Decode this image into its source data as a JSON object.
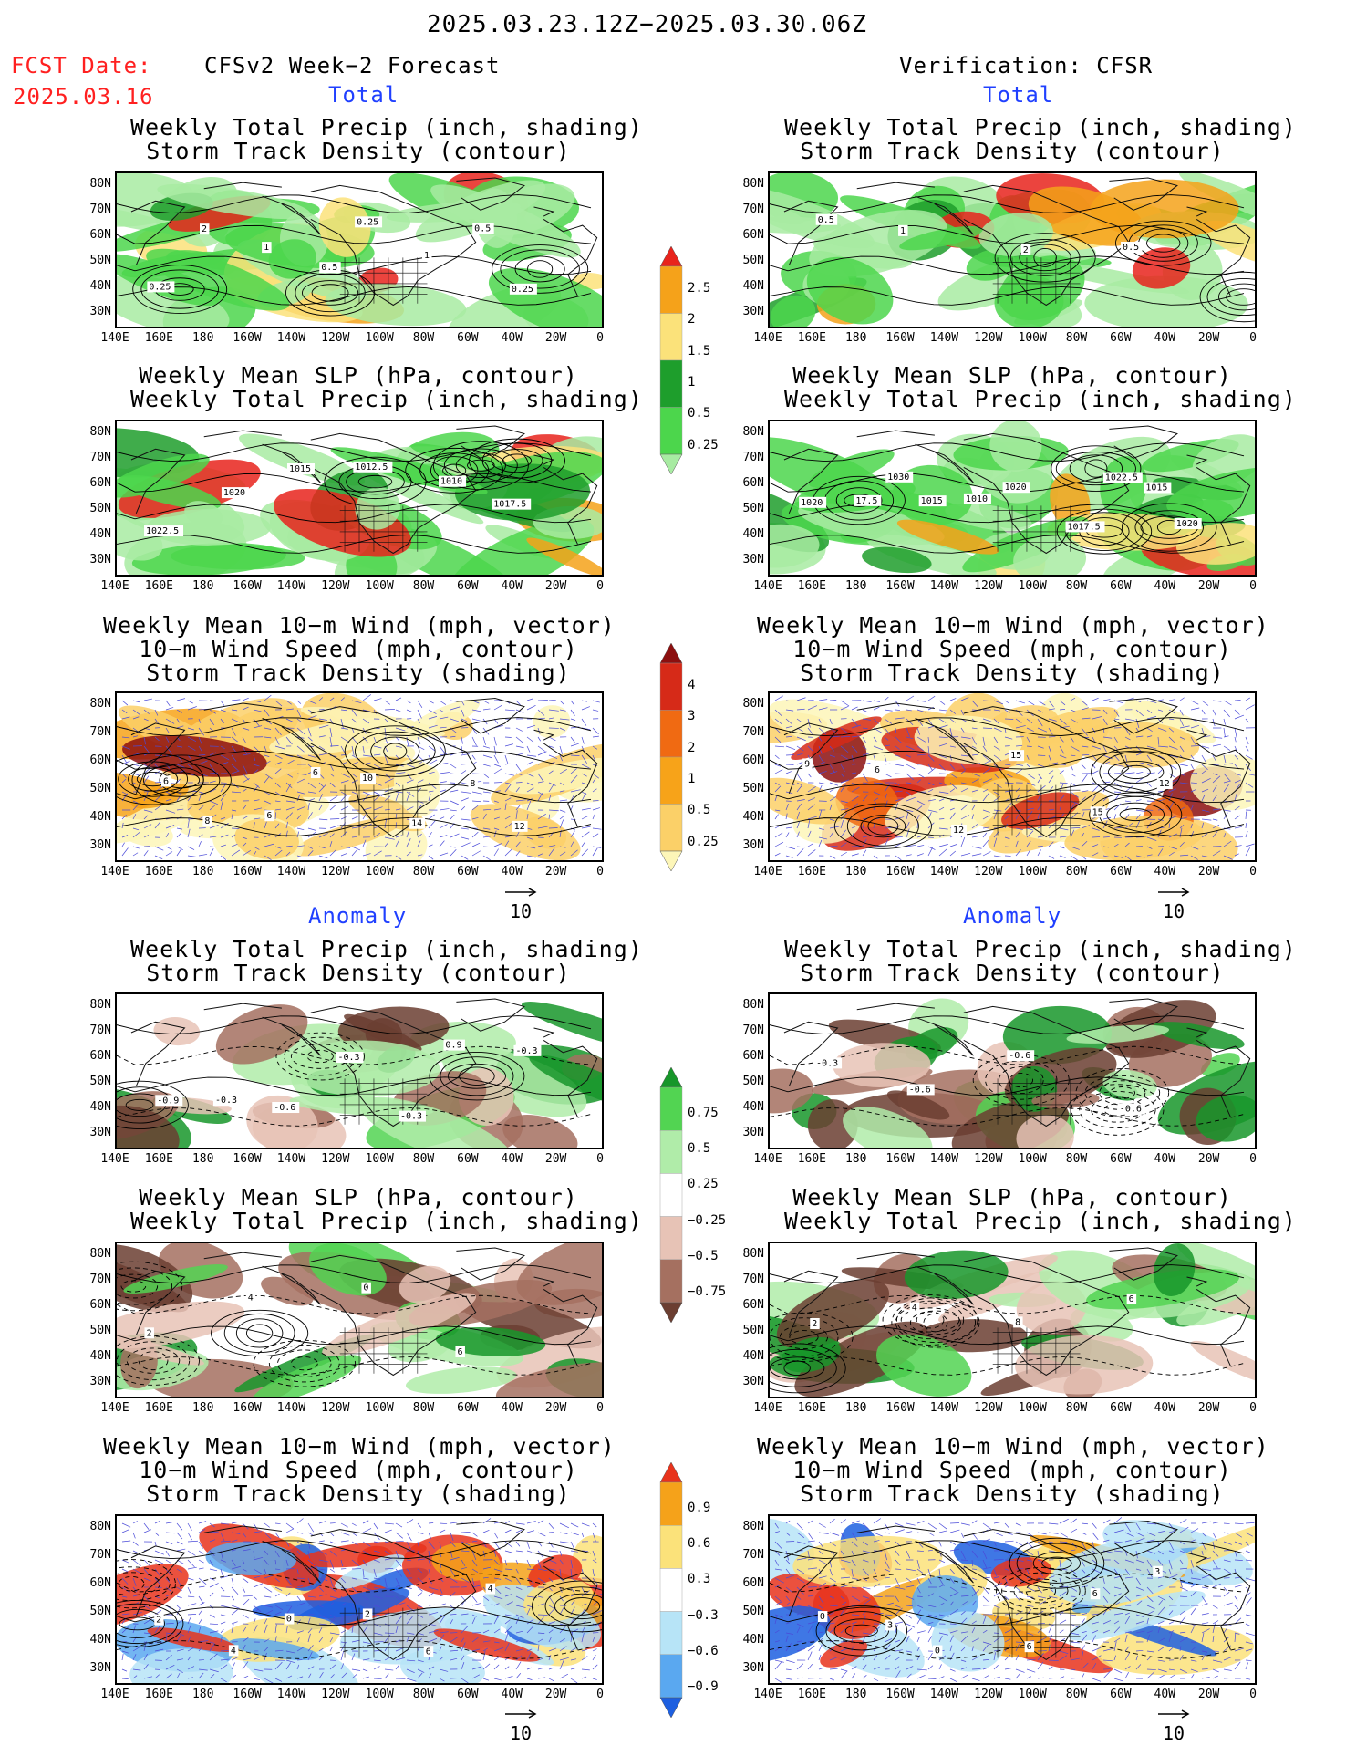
{
  "header": {
    "period": "2025.03.23.12Z−2025.03.30.06Z",
    "fcst_label": "FCST Date:",
    "fcst_date": "2025.03.16",
    "left_title": "CFSv2 Week−2 Forecast",
    "right_title": "Verification: CFSR"
  },
  "sections": {
    "total": "Total",
    "anomaly": "Anomaly"
  },
  "panel_titles": {
    "precip": [
      "Weekly Total Precip (inch, shading)",
      "Storm Track Density (contour)"
    ],
    "slp": [
      "Weekly Mean SLP (hPa, contour)",
      "Weekly Total Precip (inch, shading)"
    ],
    "wind": [
      "Weekly Mean 10−m Wind (mph, vector)",
      "10−m Wind Speed (mph, contour)",
      "Storm Track Density (shading)"
    ]
  },
  "axes": {
    "lat": [
      "80N",
      "70N",
      "60N",
      "50N",
      "40N",
      "30N"
    ],
    "lon": [
      "140E",
      "160E",
      "180",
      "160W",
      "140W",
      "120W",
      "100W",
      "80W",
      "60W",
      "40W",
      "20W",
      "0"
    ]
  },
  "vector_ref": "10",
  "colorbars": {
    "precip_total": {
      "labels": [
        "2.5",
        "2",
        "1.5",
        "1",
        "0.5",
        "0.25"
      ],
      "colors": [
        "#e8231c",
        "#f5a21a",
        "#fbe27a",
        "#1e9e2c",
        "#4cd64c",
        "#a8eba2"
      ]
    },
    "storm_total": {
      "labels": [
        "4",
        "3",
        "2",
        "1",
        "0.5",
        "0.25"
      ],
      "colors": [
        "#8c0f0f",
        "#d62a18",
        "#f06a12",
        "#f7a319",
        "#fbd068",
        "#fdf6b8"
      ]
    },
    "precip_anom": {
      "labels": [
        "0.75",
        "0.5",
        "0.25",
        "−0.25",
        "−0.5",
        "−0.75"
      ],
      "colors": [
        "#17962a",
        "#52d452",
        "#b0eca9",
        "#ffffff",
        "#e7c3b6",
        "#a57060",
        "#6b3e31"
      ]
    },
    "storm_anom": {
      "labels": [
        "0.9",
        "0.6",
        "0.3",
        "−0.3",
        "−0.6",
        "−0.9"
      ],
      "colors": [
        "#e8331c",
        "#f5a21a",
        "#fbe27a",
        "#ffffff",
        "#b7e4f7",
        "#5aa8f0",
        "#1d5fe0"
      ]
    }
  },
  "contour_labels": {
    "p1": [
      "0.25",
      "2",
      "1",
      "0.5",
      "0.25",
      "1",
      "0.5",
      "0.25"
    ],
    "p2": [
      "0.5",
      "1",
      "2",
      "0.5"
    ],
    "p3": [
      "1022.5",
      "1020",
      "1015",
      "1012.5",
      "1010",
      "1017.5"
    ],
    "p4": [
      "1020",
      "17.5",
      "1030",
      "1015",
      "1010",
      "1020",
      "1017.5",
      "1022.5",
      "1015",
      "1020"
    ],
    "p5": [
      "6",
      "8",
      "6",
      "6",
      "10",
      "14",
      "8",
      "12"
    ],
    "p6": [
      "9",
      "6",
      "12",
      "15",
      "15",
      "12"
    ],
    "p7": [
      "-0.9",
      "-0.3",
      "-0.6",
      "-0.3",
      "-0.3",
      "0.9",
      "-0.3"
    ],
    "p8": [
      "-0.3",
      "-0.6",
      "-0.6",
      "-0.6"
    ],
    "p9": [
      "2",
      "4",
      "0",
      "6"
    ],
    "p10": [
      "2",
      "4",
      "8",
      "6"
    ],
    "p11": [
      "2",
      "4",
      "0",
      "2",
      "6",
      "4"
    ],
    "p12": [
      "0",
      "3",
      "0",
      "6",
      "6",
      "3"
    ]
  }
}
